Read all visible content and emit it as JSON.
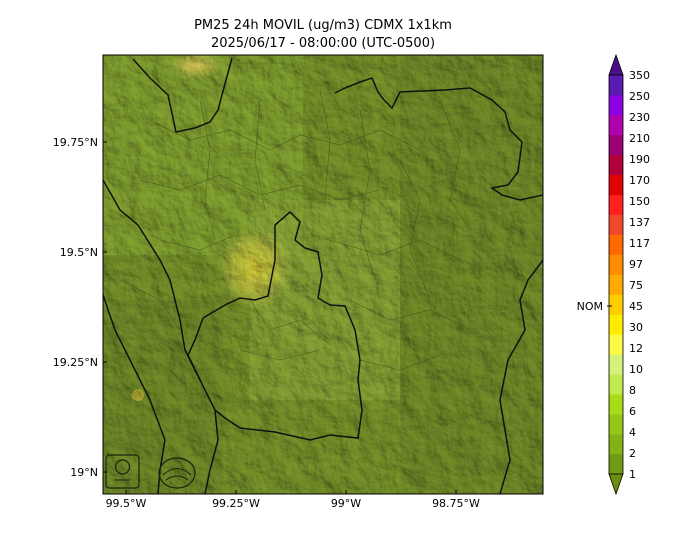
{
  "title": "PM25 24h MOVIL (ug/m3) CDMX 1x1km",
  "subtitle": "2025/06/17 - 08:00:00 (UTC-0500)",
  "map": {
    "lon_ticks": [
      "99.5°W",
      "99.25°W",
      "99°W",
      "98.75°W"
    ],
    "lat_ticks": [
      "19.75°N",
      "19.5°N",
      "19.25°N",
      "19°N"
    ],
    "logos": [
      "SEDEMA",
      "DIRECCIÓN DE MONITOREO ATMOSFÉRICO"
    ]
  },
  "colorbar": {
    "nom_label": "NOM",
    "levels": [
      "1",
      "2",
      "4",
      "6",
      "8",
      "10",
      "12",
      "30",
      "45",
      "75",
      "97",
      "117",
      "137",
      "150",
      "170",
      "190",
      "210",
      "230",
      "250",
      "350"
    ],
    "colors": [
      "#6f9a12",
      "#82b214",
      "#95c816",
      "#a8dc19",
      "#c0ea4e",
      "#d6f27a",
      "#fbfb45",
      "#ffeb00",
      "#ffcc00",
      "#ffaa00",
      "#ff8c00",
      "#ff6a00",
      "#f0462a",
      "#ff1f1f",
      "#e00000",
      "#b2003a",
      "#990073",
      "#b000b0",
      "#8c00e6",
      "#5a1bb0"
    ],
    "overflow_top": "#4b0f8c",
    "overflow_bottom": "#6a8f10"
  }
}
